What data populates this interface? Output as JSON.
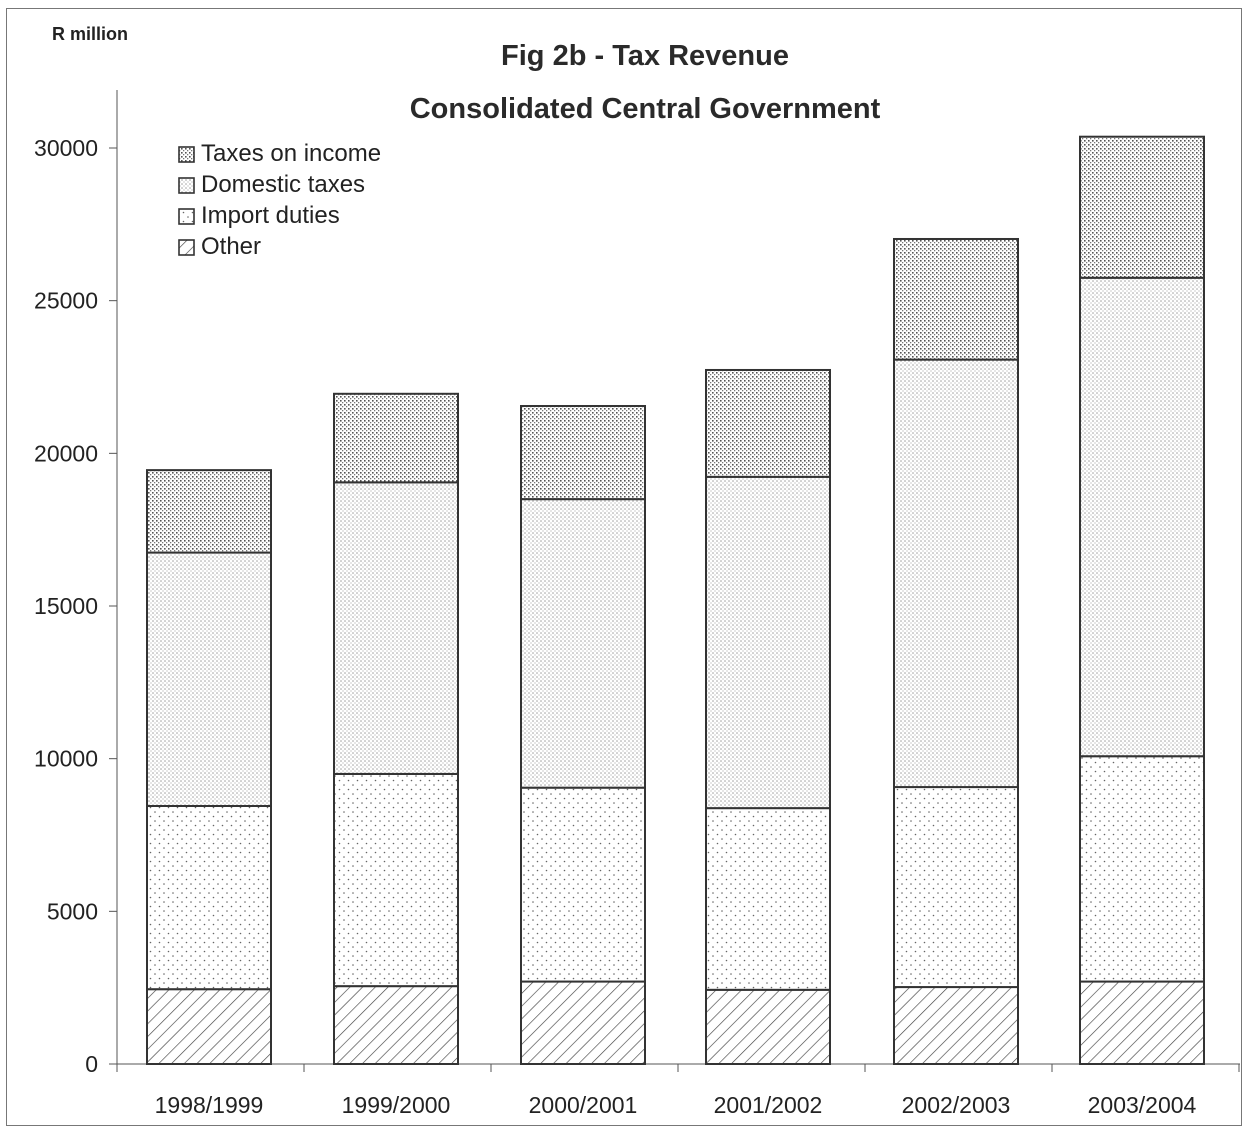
{
  "chart_data": {
    "type": "bar",
    "stacked": true,
    "title": "Fig 2b - Tax Revenue",
    "subtitle": "Consolidated Central Government",
    "ylabel": "R million",
    "xlabel": "",
    "ylim": [
      0,
      30000
    ],
    "yticks": [
      0,
      5000,
      10000,
      15000,
      20000,
      25000,
      30000
    ],
    "categories": [
      "1998/1999",
      "1999/2000",
      "2000/2001",
      "2001/2002",
      "2002/2003",
      "2003/2004"
    ],
    "series": [
      {
        "name": "Other",
        "pattern": "hatch",
        "values": [
          2450,
          2550,
          2700,
          2430,
          2520,
          2700
        ]
      },
      {
        "name": "Import duties",
        "pattern": "dots-sparse",
        "values": [
          6000,
          6950,
          6350,
          5950,
          6550,
          7380
        ]
      },
      {
        "name": "Domestic taxes",
        "pattern": "dots-dense",
        "values": [
          8300,
          9550,
          9450,
          10850,
          14000,
          15670
        ]
      },
      {
        "name": "Taxes on income",
        "pattern": "dots-grid",
        "values": [
          2700,
          2900,
          3050,
          3500,
          3950,
          4620
        ]
      }
    ],
    "legend_position": "top-left",
    "legend_order": [
      "Taxes on income",
      "Domestic taxes",
      "Import duties",
      "Other"
    ],
    "grid": false,
    "colors": {
      "stroke": "#333333",
      "text": "#222222"
    }
  }
}
